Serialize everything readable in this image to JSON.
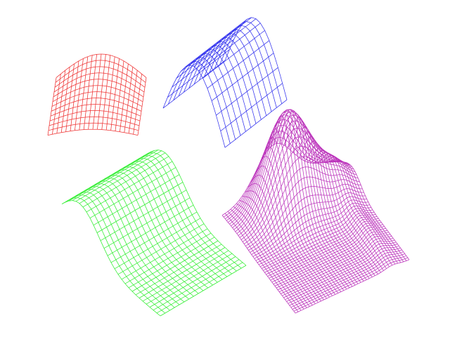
{
  "surfaces": [
    {
      "id": "red-surface",
      "color": "#ee3333"
    },
    {
      "id": "blue-surface",
      "color": "#3333ee"
    },
    {
      "id": "green-surface",
      "color": "#33ee33"
    },
    {
      "id": "magenta-surface",
      "color": "#bb33bb"
    }
  ]
}
